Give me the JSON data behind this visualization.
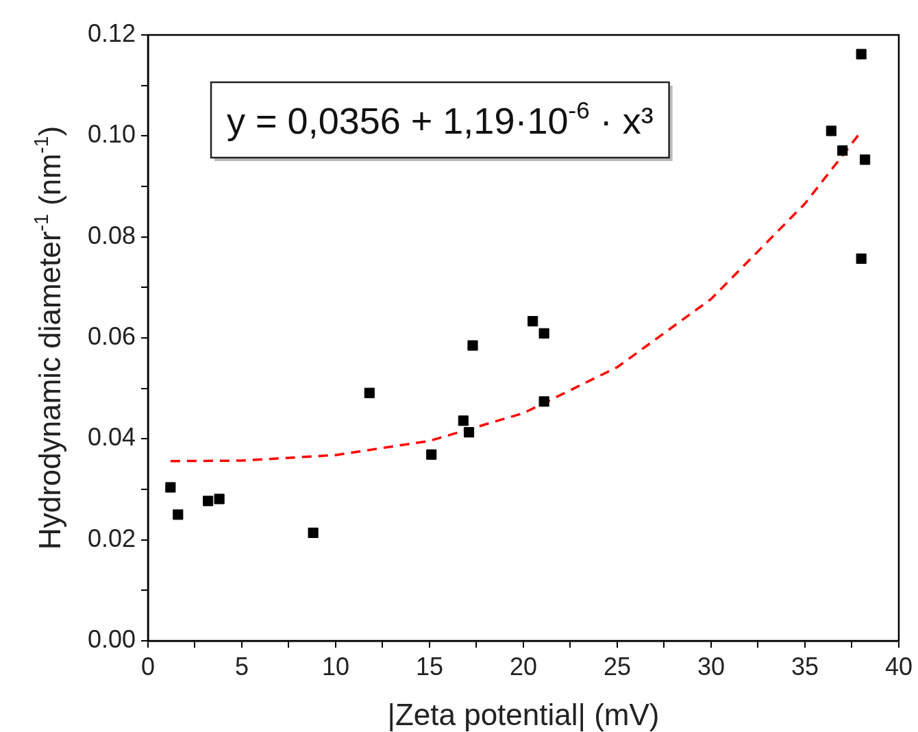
{
  "chart_data": {
    "type": "scatter",
    "xlabel": "|Zeta potential| (mV)",
    "ylabel": "Hydrodynamic diameter$^{-1}$ (nm$^{-1}$)",
    "annotations": [
      "y = 0,0356 + 1,19·10$^{-6}$ · x³"
    ],
    "xlim": [
      0,
      40
    ],
    "ylim": [
      0,
      0.12
    ],
    "xticks": [
      0,
      {
        "value": 2.5,
        "label": null
      },
      5,
      {
        "value": 7.5,
        "label": null
      },
      10,
      {
        "value": 12.5,
        "label": null
      },
      15,
      {
        "value": 17.5,
        "label": null
      },
      20,
      {
        "value": 22.5,
        "label": null
      },
      25,
      {
        "value": 27.5,
        "label": null
      },
      30,
      {
        "value": 32.5,
        "label": null
      },
      35,
      {
        "value": 37.5,
        "label": null
      },
      40
    ],
    "yticks": [
      {
        "value": 0,
        "label": "0.00"
      },
      {
        "value": 0.01,
        "label": null
      },
      {
        "value": 0.02,
        "label": "0.02"
      },
      {
        "value": 0.03,
        "label": null
      },
      {
        "value": 0.04,
        "label": "0.04"
      },
      {
        "value": 0.05,
        "label": null
      },
      {
        "value": 0.06,
        "label": "0.06"
      },
      {
        "value": 0.07,
        "label": null
      },
      {
        "value": 0.08,
        "label": "0.08"
      },
      {
        "value": 0.09,
        "label": null
      },
      {
        "value": 0.1,
        "label": "0.10"
      },
      {
        "value": 0.11,
        "label": null
      },
      {
        "value": 0.12,
        "label": "0.12"
      }
    ],
    "grid": false,
    "legend": false,
    "marker": "square",
    "series": [
      {
        "color": "#000000",
        "x": [
          1.2,
          1.6,
          3.2,
          3.8,
          8.8,
          11.8,
          15.1,
          16.8,
          17.1,
          17.3,
          20.5,
          21.1,
          21.1,
          36.4,
          37.0,
          38.0,
          38.2,
          38.0
        ],
        "values": [
          0.0304,
          0.025,
          0.0277,
          0.0281,
          0.0214,
          0.0491,
          0.0369,
          0.0436,
          0.0413,
          0.0585,
          0.0633,
          0.0609,
          0.0474,
          0.101,
          0.0971,
          0.1162,
          0.0953,
          0.0757
        ]
      },
      {
        "type": "line",
        "color": "#ff0000",
        "line_style": "dashed",
        "marker": "none",
        "x": [
          1.2,
          5,
          10,
          15,
          20,
          25,
          30,
          35,
          38
        ],
        "values": [
          0.0356,
          0.0357,
          0.0368,
          0.0396,
          0.0451,
          0.0542,
          0.0677,
          0.0866,
          0.1009
        ]
      }
    ]
  }
}
